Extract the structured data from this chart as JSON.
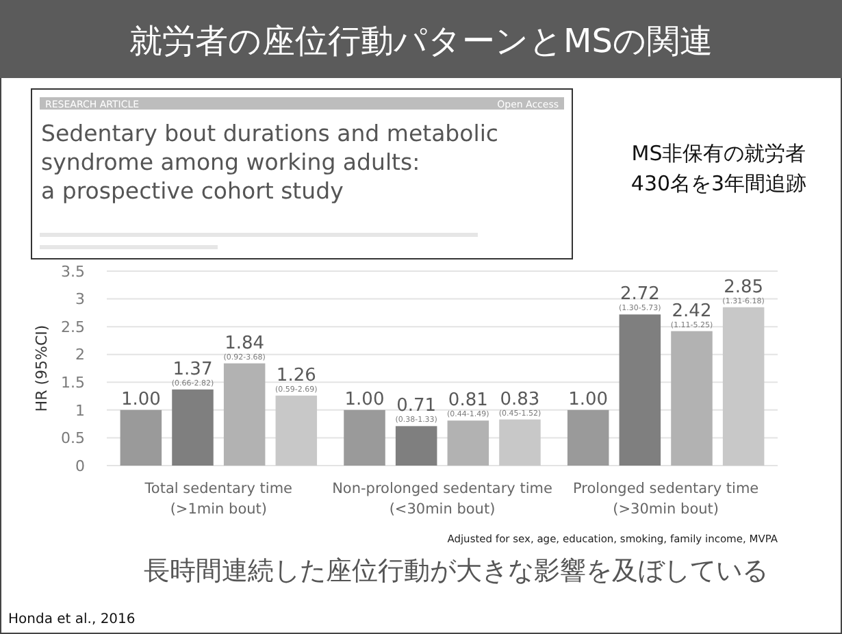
{
  "chart_data": {
    "type": "bar",
    "title": "就労者の座位行動パターンとMSの関連",
    "subtitle": "MS非保有の就労者\n430名を3年間追跡",
    "ylabel": "HR (95%CI)",
    "categories": [
      "Total sedentary time\n(>1min bout)",
      "Non-prolonged sedentary time\n(<30min bout)",
      "Prolonged sedentary time\n(>30min bout)"
    ],
    "series": [
      {
        "color": "#9a9a9a",
        "values": [
          1.0,
          1.0,
          1.0
        ],
        "value_labels": [
          "1.00",
          "1.00",
          "1.00"
        ]
      },
      {
        "color": "#7f7f7f",
        "values": [
          1.37,
          0.71,
          2.72
        ],
        "value_labels": [
          "1.37\n(0.66-2.82)",
          "0.71\n(0.38-1.33)",
          "2.72\n(1.30-5.73)"
        ]
      },
      {
        "color": "#b2b2b2",
        "values": [
          1.84,
          0.81,
          2.42
        ],
        "value_labels": [
          "1.84\n(0.92-3.68)",
          "0.81\n(0.44-1.49)",
          "2.42\n(1.11-5.25)"
        ]
      },
      {
        "color": "#c8c8c8",
        "values": [
          1.26,
          0.83,
          2.85
        ],
        "value_labels": [
          "1.26\n(0.59-2.69)",
          "0.83\n(0.45-1.52)",
          "2.85\n(1.31-6.18)"
        ]
      }
    ],
    "ylim": [
      0,
      3.5
    ],
    "yticks": [
      0,
      0.5,
      1,
      1.5,
      2,
      2.5,
      3,
      3.5
    ],
    "grid": "y",
    "annotations": [
      "Adjusted for sex, age, education, smoking, family income, MVPA",
      "長時間連続した座位行動が大きな影響を及ぼしている",
      "Honda et al., 2016",
      "RESEARCH ARTICLE",
      "Open Access",
      "Sedentary bout durations and metabolic\nsyndrome among working adults:\na prospective cohort study"
    ]
  }
}
